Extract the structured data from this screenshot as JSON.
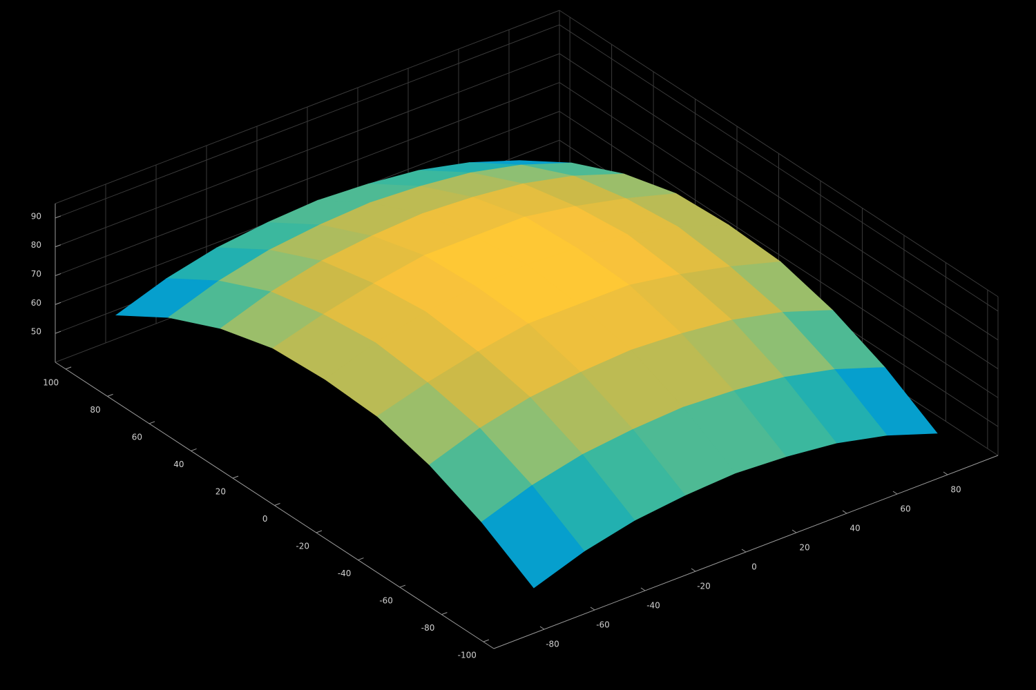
{
  "chart_data": {
    "type": "surface3d",
    "xlim": [
      -100,
      100
    ],
    "ylim": [
      -105,
      105
    ],
    "zlim": [
      40,
      95
    ],
    "xticks": [
      -80,
      -60,
      -40,
      -20,
      0,
      20,
      40,
      60,
      80
    ],
    "yticks": [
      -100,
      -80,
      -60,
      -40,
      -20,
      0,
      20,
      40,
      60,
      80,
      100
    ],
    "zticks": [
      50,
      60,
      70,
      80,
      90
    ],
    "grid": true,
    "x": [
      -80,
      -60,
      -40,
      -20,
      0,
      20,
      40,
      60,
      80
    ],
    "y": [
      -100,
      -75,
      -50,
      -25,
      0,
      25,
      50,
      75,
      100
    ],
    "z": [
      [
        52,
        58,
        62,
        64,
        65,
        64,
        62,
        58,
        52
      ],
      [
        63,
        69,
        73,
        75,
        76,
        75,
        73,
        69,
        63
      ],
      [
        71,
        77,
        81,
        83,
        84,
        83,
        81,
        77,
        71
      ],
      [
        76,
        81,
        85,
        88,
        88,
        88,
        85,
        81,
        76
      ],
      [
        77,
        83,
        87,
        89,
        90,
        89,
        87,
        83,
        77
      ],
      [
        76,
        81,
        85,
        88,
        88,
        88,
        85,
        81,
        76
      ],
      [
        71,
        77,
        81,
        83,
        84,
        83,
        81,
        77,
        71
      ],
      [
        63,
        69,
        73,
        75,
        76,
        75,
        73,
        69,
        63
      ],
      [
        52,
        58,
        62,
        64,
        65,
        64,
        62,
        58,
        52
      ]
    ]
  }
}
